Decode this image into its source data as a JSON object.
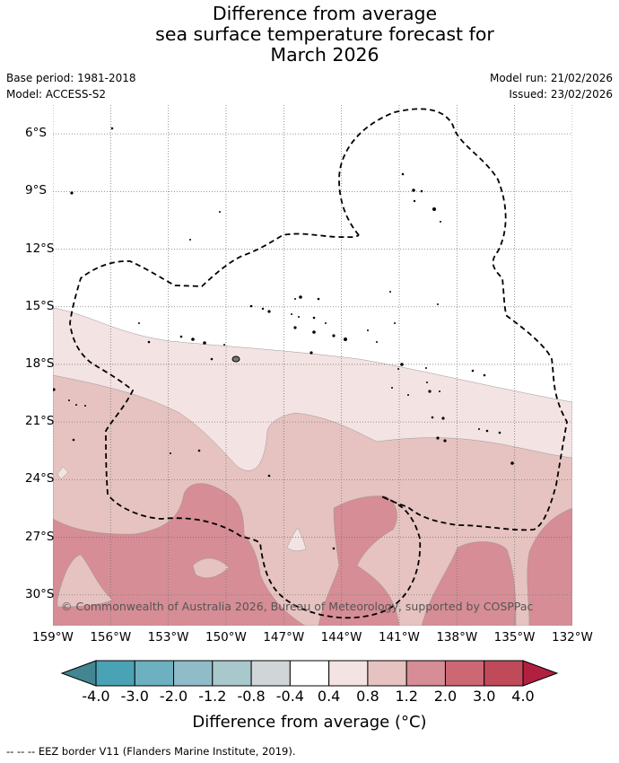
{
  "title": {
    "line1": "Difference from average",
    "line2": "sea surface temperature forecast for",
    "line3": "March 2026"
  },
  "meta": {
    "base_period": "Base period: 1981-2018",
    "model": "Model: ACCESS-S2",
    "model_run": "Model run: 21/02/2026",
    "issued": "Issued: 23/02/2026"
  },
  "map": {
    "lat_labels": [
      "6°S",
      "9°S",
      "12°S",
      "15°S",
      "18°S",
      "21°S",
      "24°S",
      "27°S",
      "30°S"
    ],
    "lon_labels": [
      "159°W",
      "156°W",
      "153°W",
      "150°W",
      "147°W",
      "144°W",
      "141°W",
      "138°W",
      "135°W",
      "132°W"
    ],
    "lon_range": [
      -159,
      -132
    ],
    "lat_range": [
      -31.6,
      -4.5
    ],
    "grid": true,
    "copyright": "© Commonwealth of Australia 2026, Bureau of Meteorology, supported by COSPPac"
  },
  "colorbar": {
    "title": "Difference from average (°C)",
    "tick_labels": [
      "-4.0",
      "-3.0",
      "-2.0",
      "-1.2",
      "-0.8",
      "-0.4",
      "0.4",
      "0.8",
      "1.2",
      "2.0",
      "3.0",
      "4.0"
    ],
    "colors": [
      "#438590",
      "#4aa3b4",
      "#6db0c0",
      "#8fbcc8",
      "#a9c8cc",
      "#d0d6d8",
      "#ffffff",
      "#f3e3e2",
      "#e6c3c0",
      "#d68d95",
      "#cc6874",
      "#c14a5a",
      "#b22040"
    ]
  },
  "footer": "--  --  -- EEZ border V11 (Flanders Marine Institute, 2019)."
}
